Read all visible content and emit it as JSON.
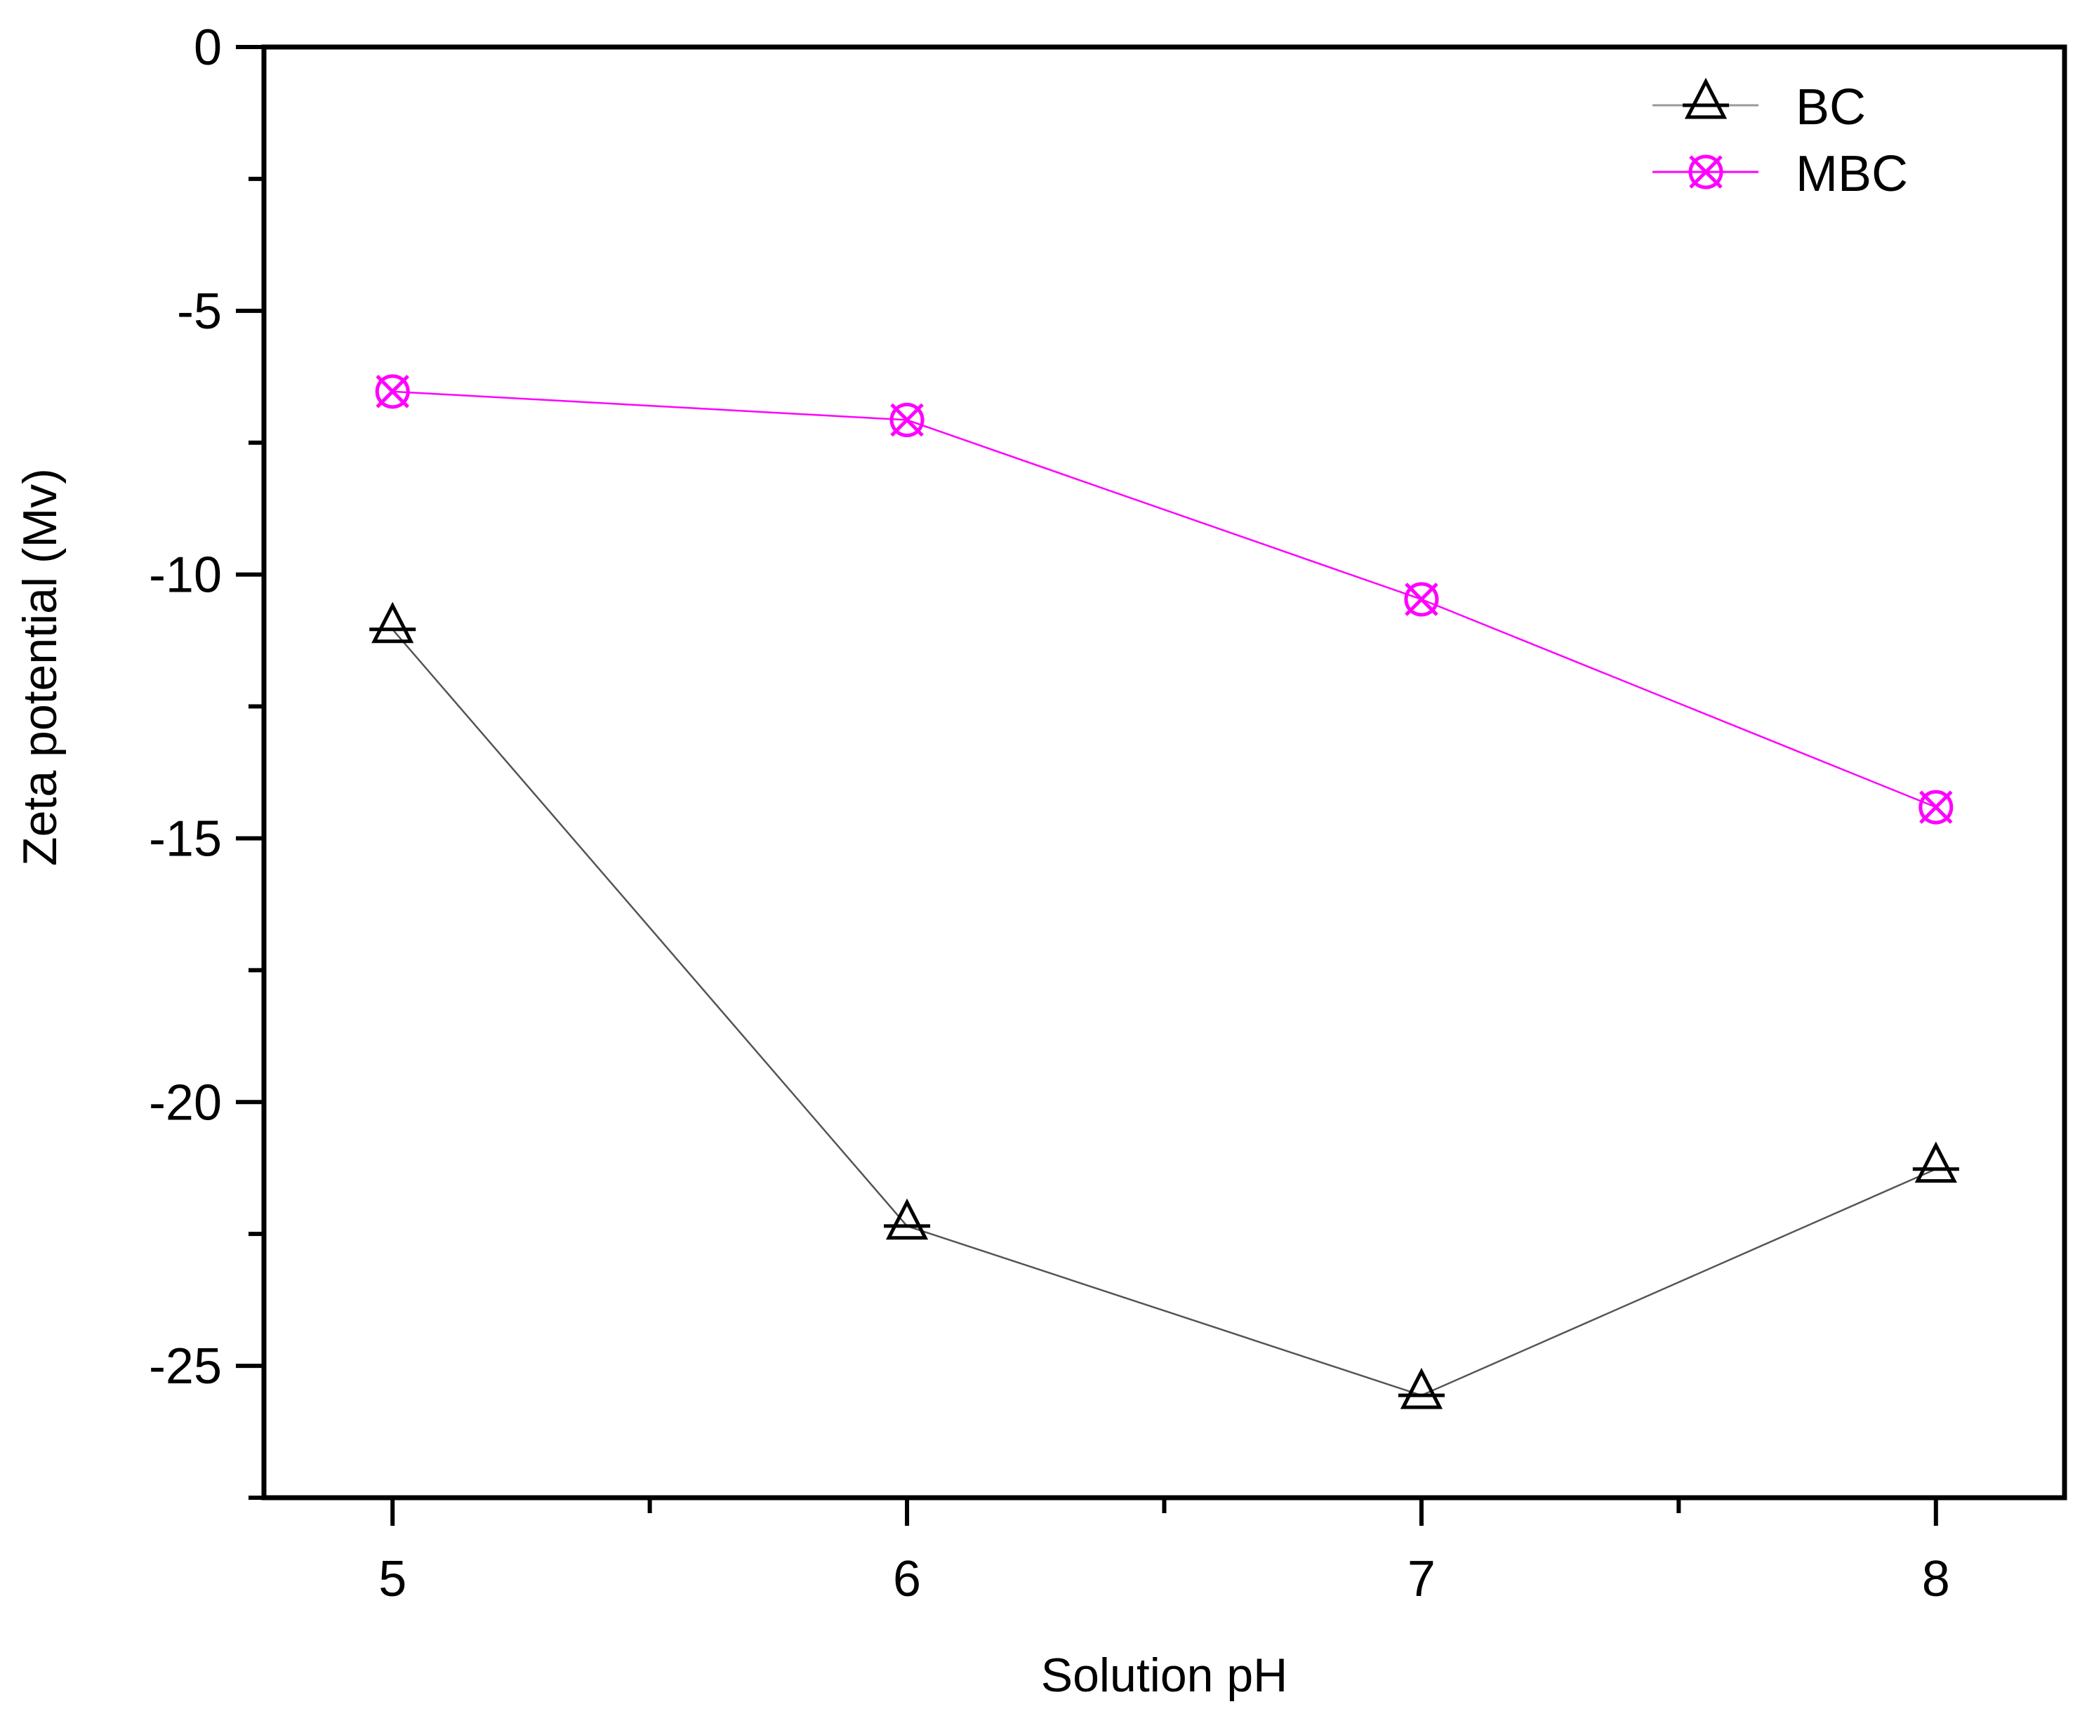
{
  "chart_data": {
    "type": "line",
    "title": "",
    "xlabel": "Solution pH",
    "ylabel": "Zeta potential (Mv)",
    "x": [
      5,
      6,
      7,
      8
    ],
    "categories": [
      "5",
      "6",
      "7",
      "8"
    ],
    "xlim": [
      4.75,
      8.25
    ],
    "ylim": [
      -27.5,
      0
    ],
    "xticks": [
      5,
      6,
      7,
      8
    ],
    "xticks_minor": [
      5.5,
      6.5,
      7.5
    ],
    "yticks": [
      0,
      -5,
      -10,
      -15,
      -20,
      -25
    ],
    "yticks_minor": [
      -2.5,
      -7.5,
      -12.5,
      -17.5,
      -22.5,
      -27.5
    ],
    "ytick_labels": [
      "0",
      "-5",
      "-10",
      "-15",
      "-20",
      "-25"
    ],
    "xtick_labels": [
      "5",
      "6",
      "7",
      "8"
    ],
    "grid": false,
    "legend_position": "upper right",
    "series": [
      {
        "name": "BC",
        "values": [
          -11.04,
          -22.35,
          -25.56,
          -21.27
        ],
        "color": "#000000",
        "line_color": "#555555",
        "marker": "triangle-open"
      },
      {
        "name": "MBC",
        "values": [
          -6.53,
          -7.07,
          -10.47,
          -14.41
        ],
        "color": "#ff00ff",
        "line_color": "#ff00ff",
        "marker": "circle-x-open"
      }
    ]
  },
  "legend": {
    "items": [
      {
        "label": "BC",
        "color": "#000000",
        "line_color": "#999999"
      },
      {
        "label": "MBC",
        "color": "#ff00ff",
        "line_color": "#ff00ff"
      }
    ]
  },
  "axes": {
    "x_title": "Solution pH",
    "y_title": "Zeta potential (Mv)"
  }
}
